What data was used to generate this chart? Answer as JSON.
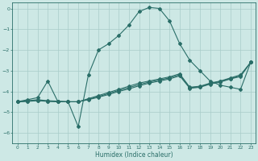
{
  "xlabel": "Humidex (Indice chaleur)",
  "xlim": [
    -0.5,
    23.5
  ],
  "ylim": [
    -6.5,
    0.3
  ],
  "yticks": [
    0,
    -1,
    -2,
    -3,
    -4,
    -5,
    -6
  ],
  "xticks": [
    0,
    1,
    2,
    3,
    4,
    5,
    6,
    7,
    8,
    9,
    10,
    11,
    12,
    13,
    14,
    15,
    16,
    17,
    18,
    19,
    20,
    21,
    22,
    23
  ],
  "bg_color": "#cde8e5",
  "line_color": "#2a6e68",
  "grid_color": "#a8ccc9",
  "main_x": [
    0,
    1,
    2,
    3,
    4,
    5,
    6,
    7,
    8,
    9,
    10,
    11,
    12,
    13,
    14,
    15,
    16,
    17,
    18,
    19,
    20,
    21,
    22,
    23
  ],
  "main_y": [
    -4.5,
    -4.4,
    -4.3,
    -3.5,
    -4.5,
    -4.5,
    -5.7,
    -3.2,
    -2.0,
    -1.7,
    -1.3,
    -0.8,
    -0.15,
    0.05,
    0.0,
    -0.6,
    -1.7,
    -2.5,
    -3.0,
    -3.5,
    -3.7,
    -3.8,
    -3.9,
    -2.6
  ],
  "line2_x": [
    0,
    1,
    2,
    3,
    4,
    5,
    6,
    7,
    8,
    9,
    10,
    11,
    12,
    13,
    14,
    15,
    16,
    17,
    18,
    19,
    20,
    21,
    22,
    23
  ],
  "line2_y": [
    -4.5,
    -4.45,
    -4.4,
    -4.45,
    -4.47,
    -4.5,
    -4.5,
    -4.35,
    -4.2,
    -4.05,
    -3.9,
    -3.75,
    -3.6,
    -3.5,
    -3.4,
    -3.3,
    -3.15,
    -3.8,
    -3.75,
    -3.6,
    -3.5,
    -3.35,
    -3.2,
    -2.6
  ],
  "line3_x": [
    0,
    1,
    2,
    3,
    4,
    5,
    6,
    7,
    8,
    9,
    10,
    11,
    12,
    13,
    14,
    15,
    16,
    17,
    18,
    19,
    20,
    21,
    22,
    23
  ],
  "line3_y": [
    -4.5,
    -4.47,
    -4.43,
    -4.47,
    -4.49,
    -4.5,
    -4.5,
    -4.38,
    -4.25,
    -4.1,
    -3.95,
    -3.82,
    -3.67,
    -3.55,
    -3.45,
    -3.35,
    -3.2,
    -3.82,
    -3.78,
    -3.62,
    -3.52,
    -3.38,
    -3.25,
    -2.6
  ],
  "line4_x": [
    0,
    1,
    2,
    3,
    4,
    5,
    6,
    7,
    8,
    9,
    10,
    11,
    12,
    13,
    14,
    15,
    16,
    17,
    18,
    19,
    20,
    21,
    22,
    23
  ],
  "line4_y": [
    -4.5,
    -4.48,
    -4.45,
    -4.48,
    -4.5,
    -4.5,
    -4.5,
    -4.4,
    -4.28,
    -4.15,
    -4.0,
    -3.88,
    -3.73,
    -3.6,
    -3.5,
    -3.4,
    -3.25,
    -3.85,
    -3.8,
    -3.65,
    -3.55,
    -3.4,
    -3.28,
    -2.6
  ]
}
